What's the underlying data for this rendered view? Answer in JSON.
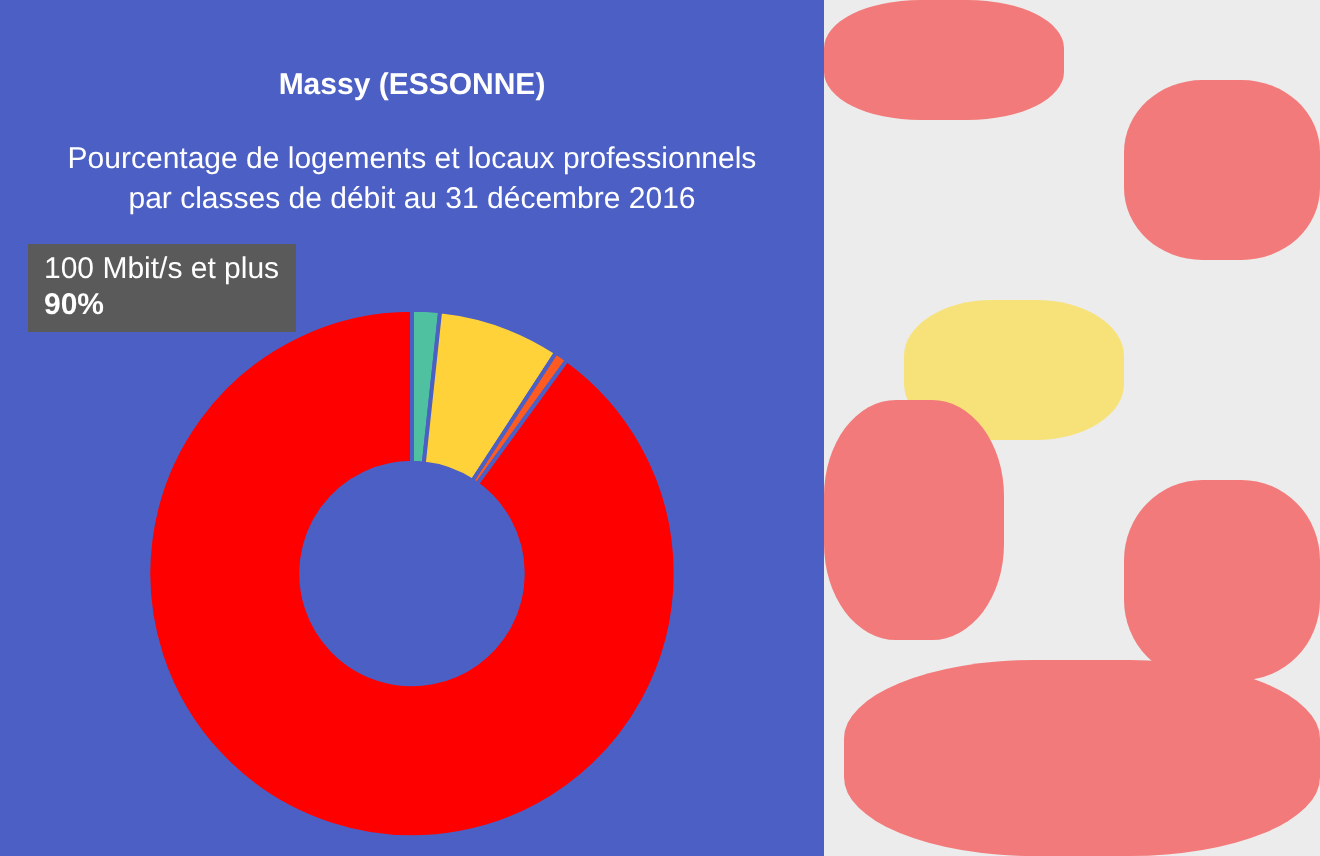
{
  "chart_data": {
    "type": "donut",
    "title": "Massy (ESSONNE)",
    "subtitle": "Pourcentage de logements et locaux professionnels par classes de débit au 31 décembre 2016",
    "categories": [
      null,
      null,
      null,
      "100 Mbit/s et plus"
    ],
    "values": [
      1.7,
      7.5,
      0.8,
      90
    ],
    "colors": [
      "#4fc1a0",
      "#ffd23a",
      "#ff5a1f",
      "#ff0000"
    ],
    "value_labels": [
      null,
      null,
      null,
      "90%"
    ],
    "legend": false
  }
}
